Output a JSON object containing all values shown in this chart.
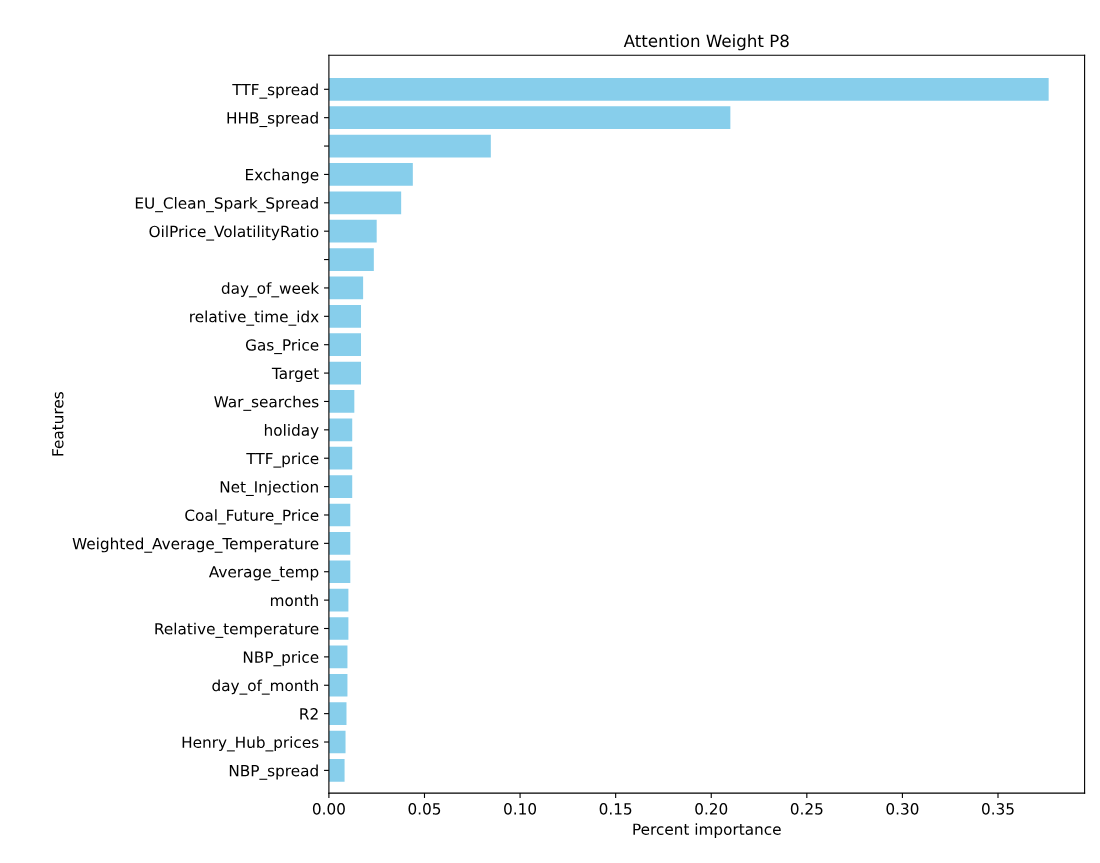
{
  "chart_data": {
    "type": "bar",
    "orientation": "horizontal",
    "title": "Attention Weight P8",
    "xlabel": "Percent importance",
    "ylabel": "Features",
    "categories": [
      "TTF_spread",
      "HHB_spread",
      null,
      "Exchange",
      "EU_Clean_Spark_Spread",
      "OilPrice_VolatilityRatio",
      null,
      "day_of_week",
      "relative_time_idx",
      "Gas_Price",
      "Target",
      "War_searches",
      "holiday",
      "TTF_price",
      "Net_Injection",
      "Coal_Future_Price",
      "Weighted_Average_Temperature",
      "Average_temp",
      "month",
      "Relative_temperature",
      "NBP_price",
      "day_of_month",
      "R2",
      "Henry_Hub_prices",
      "NBP_spread"
    ],
    "values": [
      0.3765,
      0.21,
      0.0847,
      0.0439,
      0.0378,
      0.025,
      0.0235,
      0.0179,
      0.0168,
      0.0168,
      0.0168,
      0.0133,
      0.0122,
      0.0122,
      0.0122,
      0.0112,
      0.0112,
      0.0112,
      0.0102,
      0.0102,
      0.0097,
      0.0097,
      0.0092,
      0.0087,
      0.0082
    ],
    "color": "#87ceeb",
    "xlim": [
      0,
      0.3953
    ],
    "xticks": [
      {
        "value": 0,
        "label": "0.00"
      },
      {
        "value": 0.05,
        "label": "0.05"
      },
      {
        "value": 0.1,
        "label": "0.10"
      },
      {
        "value": 0.15,
        "label": "0.15"
      },
      {
        "value": 0.2,
        "label": "0.20"
      },
      {
        "value": 0.25,
        "label": "0.25"
      },
      {
        "value": 0.3,
        "label": "0.30"
      },
      {
        "value": 0.35,
        "label": "0.35"
      }
    ],
    "grid": false,
    "legend": false
  }
}
